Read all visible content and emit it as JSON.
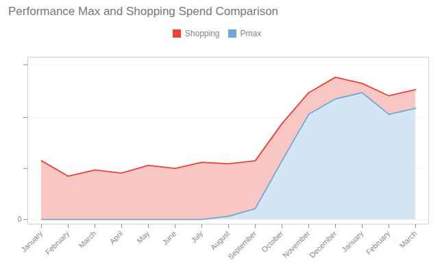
{
  "chart_data": {
    "type": "area",
    "title": "Performance Max and Shopping Spend Comparison",
    "categories": [
      "January",
      "February",
      "March",
      "April",
      "May",
      "June",
      "July",
      "August",
      "September",
      "October",
      "November",
      "December",
      "January",
      "February",
      "March"
    ],
    "series": [
      {
        "name": "Shopping",
        "color": "#e8433a",
        "values": [
          0.38,
          0.28,
          0.32,
          0.3,
          0.35,
          0.33,
          0.37,
          0.36,
          0.38,
          0.62,
          0.82,
          0.92,
          0.88,
          0.8,
          0.84
        ]
      },
      {
        "name": "Pmax",
        "color": "#6ea8d8",
        "values": [
          0.0,
          0.0,
          0.0,
          0.0,
          0.0,
          0.0,
          0.0,
          0.02,
          0.07,
          0.38,
          0.68,
          0.78,
          0.82,
          0.68,
          0.72
        ]
      }
    ],
    "ylim": [
      -0.03,
      1.05
    ],
    "yticks": [
      0,
      {
        "value": 0.33,
        "label": ""
      },
      {
        "value": 0.66,
        "label": ""
      },
      {
        "value": 1.0,
        "label": ""
      }
    ],
    "grid": true,
    "legend": "top"
  }
}
